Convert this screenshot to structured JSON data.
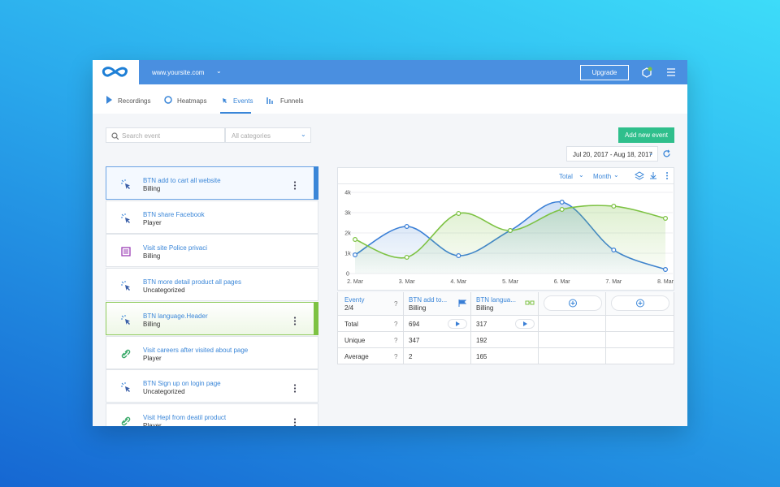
{
  "header": {
    "site": "www.yoursite.com",
    "upgrade": "Upgrade"
  },
  "tabs": [
    "Recordings",
    "Heatmaps",
    "Events",
    "Funnels"
  ],
  "search_placeholder": "Search event",
  "category_filter": "All categories",
  "add_button": "Add new event",
  "date_range": "Jul 20, 2017 - Aug 18, 2017",
  "events": [
    {
      "name": "BTN add to cart all website",
      "category": "Billing"
    },
    {
      "name": "BTN share Facebook",
      "category": "Player"
    },
    {
      "name": "Visit site Police privaci",
      "category": "Billing"
    },
    {
      "name": "BTN more detail product all pages",
      "category": "Uncategorized"
    },
    {
      "name": "BTN language.Header",
      "category": "Billing"
    },
    {
      "name": "Visit careers after visited about page",
      "category": "Player"
    },
    {
      "name": "BTN Sign up on login page",
      "category": "Uncategorized"
    },
    {
      "name": "Visit Hepl from deatil product",
      "category": "Player"
    }
  ],
  "chart_controls": [
    "Total",
    "Month"
  ],
  "chart_data": {
    "type": "line",
    "categories": [
      "2. Mar",
      "3. Mar",
      "4. Mar",
      "5. Mar",
      "6. Mar",
      "7. Mar",
      "8. Mar"
    ],
    "series": [
      {
        "color": "#3a7fd6",
        "values": [
          920,
          2320,
          880,
          2120,
          3520,
          1160,
          200
        ]
      },
      {
        "color": "#7dc243",
        "values": [
          1680,
          800,
          2960,
          2120,
          3160,
          3320,
          2720
        ]
      }
    ],
    "ylim": [
      0,
      4000
    ],
    "yticks": [
      0,
      {
        "value": 1000,
        "label": "1k"
      },
      {
        "value": 2000,
        "label": "2k"
      },
      {
        "value": 3000,
        "label": "3k"
      },
      {
        "value": 4000,
        "label": "4k"
      }
    ],
    "grid": true
  },
  "table": {
    "label": "Eventy",
    "count": "2/4",
    "help": "?",
    "columns": [
      {
        "name": "BTN add to...",
        "category": "Billing"
      },
      {
        "name": "BTN langua...",
        "category": "Billing"
      }
    ],
    "rows": [
      [
        "Total",
        "694",
        "317"
      ],
      [
        "Unique",
        "347",
        "192"
      ],
      [
        "Average",
        "2",
        "165"
      ]
    ]
  }
}
